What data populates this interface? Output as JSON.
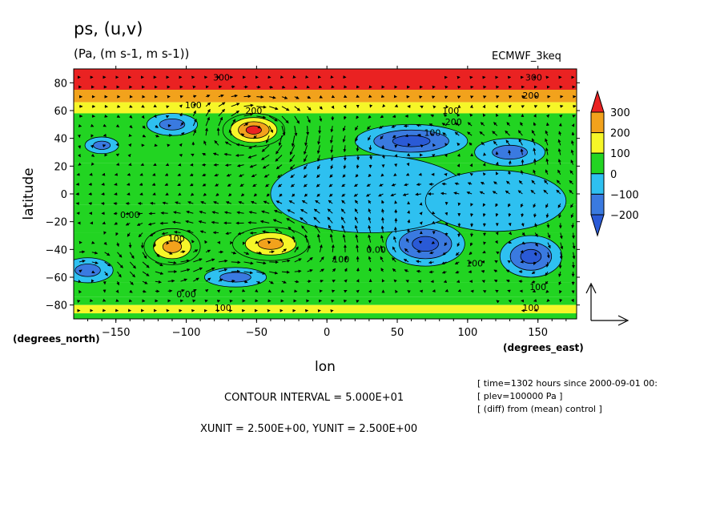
{
  "header": {
    "title": "ps, (u,v)",
    "units": "(Pa, (m s-1, m s-1))",
    "model": "ECMWF_3keq"
  },
  "footer": {
    "contour_interval": "CONTOUR INTERVAL = 5.000E+01",
    "vector_units": "XUNIT = 2.500E+00, YUNIT = 2.500E+00",
    "info_time": "[ time=1302 hours since 2000-09-01 00:",
    "info_plev": "[ plev=100000 Pa ]",
    "info_diff": "[ (diff) from (mean) control ]"
  },
  "colors": {
    "bands": [
      "#3a7ae0",
      "#2ec0f0",
      "#22d422",
      "#f6f628",
      "#f2a21c",
      "#ea2222"
    ],
    "deep": "#2a5ad6"
  },
  "chart_data": {
    "type": "heatmap",
    "title": "ps, (u,v)",
    "xlabel": "lon",
    "ylabel": "latitude",
    "xunit_label": "(degrees_east)",
    "yunit_label": "(degrees_north)",
    "xlim": [
      -180,
      177.5
    ],
    "ylim": [
      -90,
      90
    ],
    "x_ticks": [
      -150,
      -100,
      -50,
      0,
      50,
      100,
      150
    ],
    "y_ticks": [
      -80,
      -60,
      -40,
      -20,
      0,
      20,
      40,
      60,
      80
    ],
    "x_tick_labels": [
      "−150",
      "−100",
      "−50",
      "0",
      "50",
      "100",
      "150"
    ],
    "y_tick_labels": [
      "−80",
      "−60",
      "−40",
      "−20",
      "0",
      "20",
      "40",
      "60",
      "80"
    ],
    "colorbar": {
      "levels": [
        -200,
        -100,
        0,
        100,
        200,
        300
      ],
      "labels": [
        "−200",
        "−100",
        "0",
        "100",
        "200",
        "300"
      ],
      "extend": "both"
    },
    "contour_interval": 50,
    "contour_labels": [
      {
        "text": "300",
        "lon": -75,
        "lat": 84
      },
      {
        "text": "300",
        "lon": 147,
        "lat": 84
      },
      {
        "text": "100",
        "lon": -95,
        "lat": 64
      },
      {
        "text": "200",
        "lon": -52,
        "lat": 60
      },
      {
        "text": "200",
        "lon": 145,
        "lat": 71
      },
      {
        "text": "100",
        "lon": 88,
        "lat": 60
      },
      {
        "text": "200",
        "lon": 90,
        "lat": 52
      },
      {
        "text": "100",
        "lon": 75,
        "lat": 44
      },
      {
        "text": "0.00",
        "lon": -140,
        "lat": -15
      },
      {
        "text": "100",
        "lon": -107,
        "lat": -32
      },
      {
        "text": "100",
        "lon": 10,
        "lat": -47
      },
      {
        "text": "0.00",
        "lon": 35,
        "lat": -40
      },
      {
        "text": "0.00",
        "lon": -100,
        "lat": -72
      },
      {
        "text": "100",
        "lon": -74,
        "lat": -82
      },
      {
        "text": "100",
        "lon": 105,
        "lat": -50
      },
      {
        "text": "100",
        "lon": 150,
        "lat": -67
      },
      {
        "text": "100",
        "lon": 145,
        "lat": -82
      }
    ],
    "anomalies": [
      {
        "lon": -52,
        "lat": 46,
        "value": 310,
        "rx": 22,
        "ry": 12
      },
      {
        "lon": -110,
        "lat": -38,
        "value": 230,
        "rx": 20,
        "ry": 13
      },
      {
        "lon": -40,
        "lat": -36,
        "value": 240,
        "rx": 27,
        "ry": 12
      },
      {
        "lon": 60,
        "lat": 38,
        "value": -210,
        "rx": 40,
        "ry": 12
      },
      {
        "lon": 70,
        "lat": -36,
        "value": -230,
        "rx": 28,
        "ry": 16
      },
      {
        "lon": 145,
        "lat": -45,
        "value": -220,
        "rx": 22,
        "ry": 15
      },
      {
        "lon": -170,
        "lat": -55,
        "value": -160,
        "rx": 18,
        "ry": 9
      },
      {
        "lon": -160,
        "lat": 35,
        "value": -120,
        "rx": 12,
        "ry": 6
      },
      {
        "lon": -110,
        "lat": 50,
        "value": -110,
        "rx": 18,
        "ry": 8
      },
      {
        "lon": 130,
        "lat": 30,
        "value": -150,
        "rx": 25,
        "ry": 10
      },
      {
        "lon": -65,
        "lat": -60,
        "value": -110,
        "rx": 22,
        "ry": 7
      },
      {
        "lon": 30,
        "lat": 0,
        "value": -90,
        "rx": 70,
        "ry": 28
      },
      {
        "lon": 120,
        "lat": -5,
        "value": -90,
        "rx": 50,
        "ry": 22
      }
    ]
  }
}
